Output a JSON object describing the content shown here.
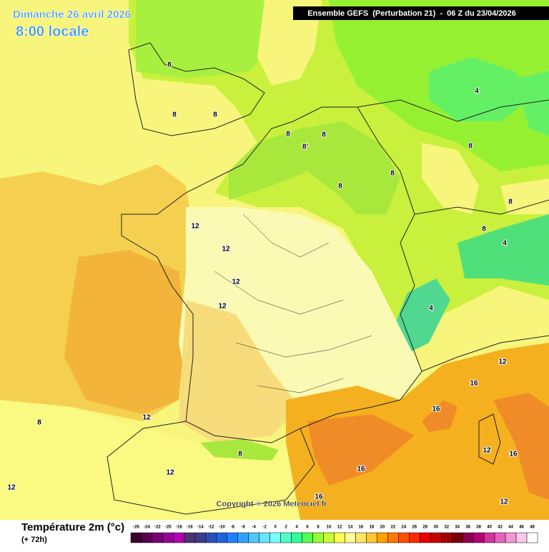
{
  "header": {
    "title": "Dimanche 26 avril 2026",
    "subtitle": "8:00 locale",
    "model": "Ensemble GEFS  (Perturbation 21)  -  06 Z du 23/04/2026"
  },
  "contour_labels": [
    8,
    8,
    8,
    8,
    8,
    "8'",
    8,
    8,
    4,
    8,
    8,
    8,
    4,
    4,
    12,
    12,
    12,
    12,
    12,
    16,
    16,
    12,
    8,
    8,
    12,
    16,
    12,
    16,
    12,
    16,
    12
  ],
  "copyright": "Copyright © 2026 Meteociel.fr",
  "legend": {
    "title": "Température 2m (°c)",
    "subtitle": "(+ 72h)",
    "ticks": [
      -26,
      -24,
      -22,
      -20,
      -18,
      -16,
      -14,
      -12,
      -10,
      -8,
      -6,
      -4,
      -2,
      0,
      2,
      4,
      6,
      8,
      10,
      12,
      14,
      16,
      18,
      20,
      22,
      24,
      26,
      28,
      30,
      32,
      34,
      36,
      38,
      40,
      42,
      44,
      46,
      48
    ],
    "colors": [
      "#3c0030",
      "#5a0050",
      "#780078",
      "#960096",
      "#b400b4",
      "#50306e",
      "#3c3c8c",
      "#2850b4",
      "#1e64dc",
      "#1e82ff",
      "#32a0ff",
      "#50c8ff",
      "#64e6ff",
      "#78ffff",
      "#50ffc8",
      "#32ff96",
      "#50ff50",
      "#96ff32",
      "#c8ff32",
      "#ffff50",
      "#ffff96",
      "#ffe664",
      "#ffc832",
      "#ffa000",
      "#ff7800",
      "#ff5000",
      "#ff2800",
      "#e60000",
      "#c80000",
      "#a00000",
      "#780000",
      "#8c0050",
      "#b40078",
      "#d2329b",
      "#e664be",
      "#f096d7",
      "#fac8eb",
      "#ffffff"
    ]
  }
}
